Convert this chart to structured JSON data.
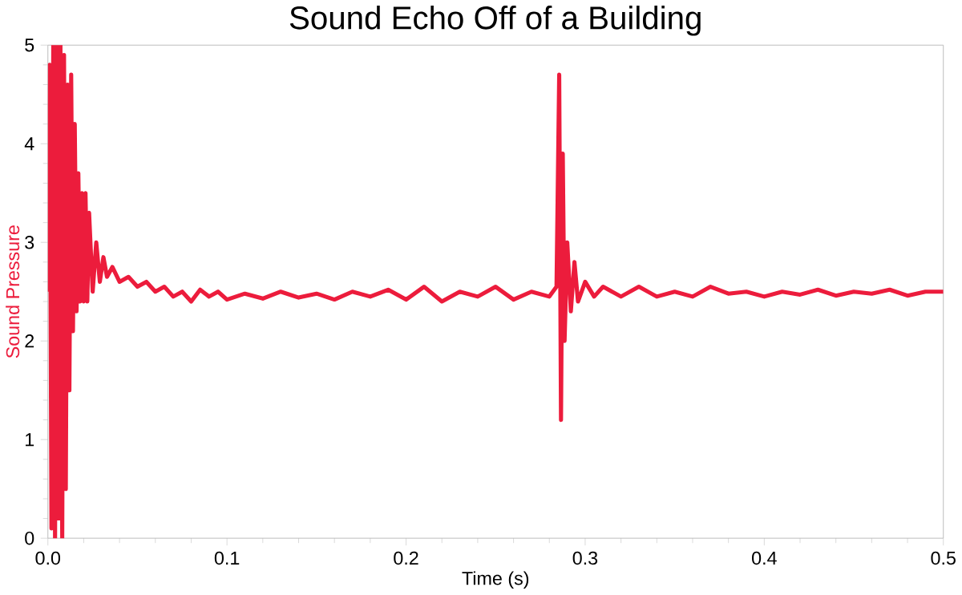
{
  "chart_data": {
    "type": "line",
    "title": "Sound Echo Off of a Building",
    "xlabel": "Time (s)",
    "ylabel": "Sound Pressure",
    "xlim": [
      0,
      0.5
    ],
    "ylim": [
      0,
      5
    ],
    "xticks": [
      {
        "value": 0,
        "label": "0.0"
      },
      0.1,
      0.2,
      0.3,
      0.4,
      0.5
    ],
    "yticks": [
      0,
      1,
      2,
      3,
      4,
      5
    ],
    "grid": false,
    "marker": "none",
    "line_style": "solid",
    "series": [
      {
        "color": "#ec1c3c",
        "x": [
          0.0,
          0.001,
          0.002,
          0.003,
          0.004,
          0.005,
          0.006,
          0.007,
          0.008,
          0.009,
          0.01,
          0.011,
          0.012,
          0.013,
          0.014,
          0.015,
          0.016,
          0.017,
          0.018,
          0.019,
          0.02,
          0.021,
          0.022,
          0.023,
          0.025,
          0.027,
          0.029,
          0.031,
          0.033,
          0.036,
          0.04,
          0.045,
          0.05,
          0.055,
          0.06,
          0.065,
          0.07,
          0.075,
          0.08,
          0.085,
          0.09,
          0.095,
          0.1,
          0.11,
          0.12,
          0.13,
          0.14,
          0.15,
          0.16,
          0.17,
          0.18,
          0.19,
          0.2,
          0.21,
          0.22,
          0.23,
          0.24,
          0.25,
          0.26,
          0.27,
          0.28,
          0.284,
          0.2855,
          0.2865,
          0.2875,
          0.2885,
          0.29,
          0.292,
          0.294,
          0.296,
          0.3,
          0.305,
          0.31,
          0.32,
          0.33,
          0.34,
          0.35,
          0.36,
          0.37,
          0.38,
          0.39,
          0.4,
          0.41,
          0.42,
          0.43,
          0.44,
          0.45,
          0.46,
          0.47,
          0.48,
          0.49,
          0.5
        ],
        "values": [
          2.5,
          4.8,
          0.1,
          5,
          0,
          5,
          0.2,
          5,
          0,
          4.9,
          0.5,
          4.6,
          1.5,
          4.7,
          2.1,
          4.2,
          2.3,
          3.7,
          2.4,
          3.5,
          2.4,
          3.5,
          2.4,
          3.3,
          2.5,
          3.0,
          2.6,
          2.85,
          2.65,
          2.75,
          2.6,
          2.65,
          2.55,
          2.6,
          2.5,
          2.55,
          2.45,
          2.5,
          2.4,
          2.52,
          2.45,
          2.5,
          2.42,
          2.48,
          2.43,
          2.5,
          2.44,
          2.48,
          2.42,
          2.5,
          2.45,
          2.52,
          2.42,
          2.55,
          2.4,
          2.5,
          2.45,
          2.55,
          2.42,
          2.5,
          2.45,
          2.55,
          4.7,
          1.2,
          3.9,
          2.0,
          3.0,
          2.3,
          2.8,
          2.4,
          2.6,
          2.45,
          2.55,
          2.45,
          2.55,
          2.45,
          2.5,
          2.45,
          2.55,
          2.48,
          2.5,
          2.45,
          2.5,
          2.47,
          2.52,
          2.46,
          2.5,
          2.48,
          2.52,
          2.46,
          2.5,
          2.5
        ]
      }
    ]
  }
}
